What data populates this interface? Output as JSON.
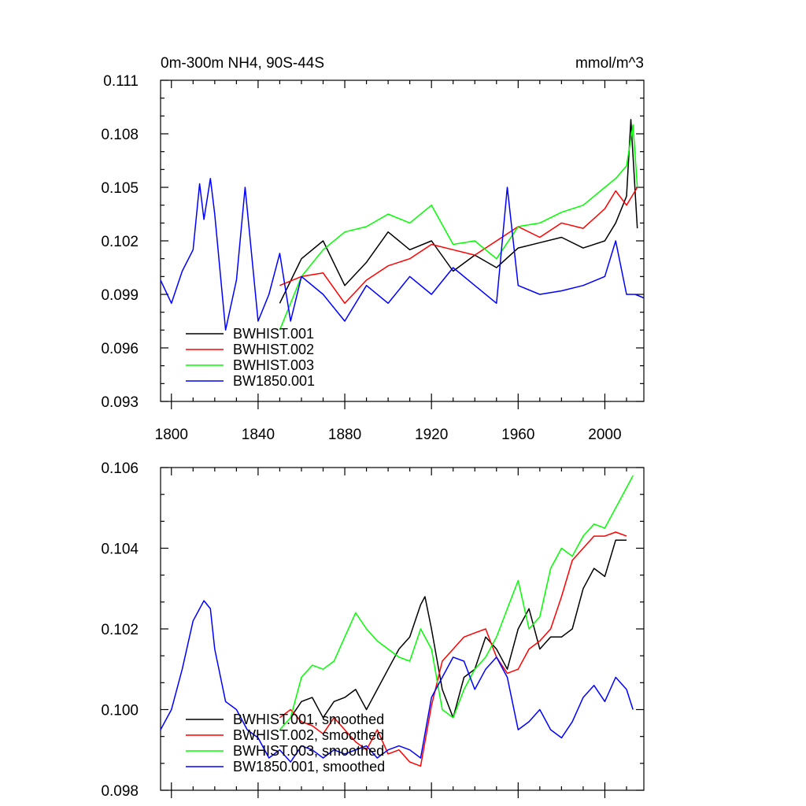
{
  "chart_data": [
    {
      "type": "line",
      "title_left": "0m-300m NH4, 90S-44S",
      "title_right": "mmol/m^3",
      "xlim": [
        1795,
        2018
      ],
      "ylim": [
        0.093,
        0.111
      ],
      "xticks": [
        1800,
        1840,
        1880,
        1920,
        1960,
        2000
      ],
      "yticks": [
        0.093,
        0.096,
        0.099,
        0.102,
        0.105,
        0.108,
        0.111
      ],
      "ytick_labels": [
        "0.093",
        "0.096",
        "0.099",
        "0.102",
        "0.105",
        "0.108",
        "0.111"
      ],
      "legend_placement": "bottom-left",
      "series": [
        {
          "name": "BWHIST.001",
          "color": "#000000",
          "x": [
            1850,
            1860,
            1870,
            1880,
            1890,
            1900,
            1910,
            1920,
            1930,
            1940,
            1950,
            1960,
            1970,
            1980,
            1990,
            2000,
            2005,
            2010,
            2012,
            2015
          ],
          "values": [
            0.0985,
            0.101,
            0.102,
            0.0995,
            0.1008,
            0.1025,
            0.1015,
            0.102,
            0.1003,
            0.1012,
            0.1005,
            0.1016,
            0.1019,
            0.1022,
            0.1016,
            0.102,
            0.103,
            0.1045,
            0.1088,
            0.1027
          ]
        },
        {
          "name": "BWHIST.002",
          "color": "#ff0000",
          "x": [
            1850,
            1860,
            1870,
            1880,
            1890,
            1900,
            1910,
            1920,
            1930,
            1940,
            1950,
            1960,
            1970,
            1980,
            1990,
            2000,
            2005,
            2010,
            2015
          ],
          "values": [
            0.0995,
            0.1,
            0.1002,
            0.0985,
            0.0998,
            0.1006,
            0.101,
            0.1018,
            0.1015,
            0.1012,
            0.102,
            0.1028,
            0.1022,
            0.103,
            0.1027,
            0.1038,
            0.1048,
            0.104,
            0.105
          ]
        },
        {
          "name": "BWHIST.003",
          "color": "#00ff00",
          "x": [
            1850,
            1860,
            1870,
            1880,
            1890,
            1900,
            1910,
            1920,
            1930,
            1940,
            1950,
            1960,
            1970,
            1980,
            1990,
            2000,
            2005,
            2010,
            2013,
            2015
          ],
          "values": [
            0.097,
            0.1,
            0.1015,
            0.1025,
            0.1028,
            0.1035,
            0.103,
            0.104,
            0.1018,
            0.102,
            0.101,
            0.1028,
            0.103,
            0.1036,
            0.104,
            0.105,
            0.1055,
            0.1062,
            0.1085,
            0.105
          ]
        },
        {
          "name": "BW1850.001",
          "color": "#0000ff",
          "x": [
            1795,
            1800,
            1805,
            1810,
            1813,
            1815,
            1818,
            1820,
            1825,
            1830,
            1834,
            1840,
            1845,
            1850,
            1855,
            1860,
            1870,
            1880,
            1890,
            1900,
            1910,
            1920,
            1930,
            1940,
            1950,
            1955,
            1960,
            1970,
            1980,
            1990,
            2000,
            2005,
            2010,
            2014,
            2018
          ],
          "values": [
            0.0998,
            0.0985,
            0.1003,
            0.1015,
            0.1052,
            0.1032,
            0.1055,
            0.1035,
            0.097,
            0.0998,
            0.105,
            0.0975,
            0.099,
            0.1013,
            0.0975,
            0.1,
            0.099,
            0.0975,
            0.0995,
            0.0985,
            0.1,
            0.099,
            0.1005,
            0.0995,
            0.0985,
            0.105,
            0.0995,
            0.099,
            0.0992,
            0.0995,
            0.1,
            0.102,
            0.099,
            0.099,
            0.0988
          ]
        }
      ]
    },
    {
      "type": "line",
      "title_left": "",
      "title_right": "",
      "xlim": [
        1795,
        2018
      ],
      "ylim": [
        0.098,
        0.106
      ],
      "xticks": [
        1800,
        1840,
        1880,
        1920,
        1960,
        2000
      ],
      "yticks": [
        0.098,
        0.1,
        0.102,
        0.104,
        0.106
      ],
      "ytick_labels": [
        "0.098",
        "0.100",
        "0.102",
        "0.104",
        "0.106"
      ],
      "legend_placement": "bottom-left",
      "series": [
        {
          "name": "BWHIST.001, smoothed",
          "color": "#000000",
          "x": [
            1855,
            1860,
            1865,
            1870,
            1875,
            1880,
            1885,
            1890,
            1895,
            1900,
            1905,
            1910,
            1915,
            1917,
            1920,
            1925,
            1930,
            1935,
            1940,
            1945,
            1950,
            1955,
            1960,
            1965,
            1970,
            1975,
            1980,
            1985,
            1990,
            1995,
            2000,
            2005,
            2010
          ],
          "values": [
            0.0998,
            0.1002,
            0.1003,
            0.0998,
            0.1002,
            0.1003,
            0.1005,
            0.1,
            0.1005,
            0.101,
            0.1015,
            0.1018,
            0.1026,
            0.1028,
            0.102,
            0.1005,
            0.0998,
            0.1008,
            0.101,
            0.1018,
            0.1015,
            0.101,
            0.102,
            0.1025,
            0.1015,
            0.1018,
            0.1018,
            0.102,
            0.103,
            0.1035,
            0.1033,
            0.1042,
            0.1042
          ]
        },
        {
          "name": "BWHIST.002, smoothed",
          "color": "#ff0000",
          "x": [
            1850,
            1855,
            1860,
            1865,
            1870,
            1875,
            1880,
            1885,
            1890,
            1895,
            1900,
            1905,
            1910,
            1915,
            1920,
            1925,
            1930,
            1935,
            1940,
            1945,
            1950,
            1955,
            1960,
            1965,
            1970,
            1975,
            1980,
            1985,
            1990,
            1995,
            2000,
            2005,
            2010
          ],
          "values": [
            0.0998,
            0.1,
            0.0997,
            0.0996,
            0.0994,
            0.0998,
            0.0995,
            0.0992,
            0.099,
            0.0995,
            0.0989,
            0.099,
            0.0987,
            0.0986,
            0.1001,
            0.1012,
            0.1015,
            0.1018,
            0.1019,
            0.102,
            0.1013,
            0.1009,
            0.101,
            0.1015,
            0.1017,
            0.102,
            0.1028,
            0.1037,
            0.104,
            0.1043,
            0.1043,
            0.1044,
            0.1043
          ]
        },
        {
          "name": "BWHIST.003, smoothed",
          "color": "#00ff00",
          "x": [
            1850,
            1855,
            1860,
            1865,
            1870,
            1875,
            1880,
            1885,
            1890,
            1895,
            1900,
            1905,
            1910,
            1915,
            1920,
            1925,
            1930,
            1935,
            1940,
            1945,
            1950,
            1955,
            1960,
            1965,
            1970,
            1975,
            1980,
            1985,
            1990,
            1995,
            2000,
            2005,
            2010,
            2013
          ],
          "values": [
            0.0995,
            0.0998,
            0.1008,
            0.1011,
            0.101,
            0.1012,
            0.1018,
            0.1024,
            0.102,
            0.1017,
            0.1015,
            0.1013,
            0.1012,
            0.102,
            0.1015,
            0.1,
            0.0998,
            0.1005,
            0.101,
            0.1013,
            0.1018,
            0.1025,
            0.1032,
            0.102,
            0.1023,
            0.1035,
            0.104,
            0.1038,
            0.1043,
            0.1046,
            0.1045,
            0.105,
            0.1055,
            0.1058
          ]
        },
        {
          "name": "BW1850.001, smoothed",
          "color": "#0000ff",
          "x": [
            1795,
            1800,
            1805,
            1810,
            1815,
            1818,
            1820,
            1825,
            1830,
            1835,
            1840,
            1845,
            1850,
            1855,
            1860,
            1865,
            1870,
            1875,
            1880,
            1885,
            1890,
            1895,
            1900,
            1905,
            1910,
            1915,
            1920,
            1925,
            1930,
            1935,
            1940,
            1945,
            1950,
            1955,
            1960,
            1965,
            1970,
            1975,
            1980,
            1985,
            1990,
            1995,
            2000,
            2005,
            2010,
            2013
          ],
          "values": [
            0.0995,
            0.1,
            0.101,
            0.1022,
            0.1027,
            0.1025,
            0.1015,
            0.1002,
            0.1,
            0.0995,
            0.0993,
            0.0988,
            0.099,
            0.0987,
            0.0991,
            0.099,
            0.0988,
            0.099,
            0.0989,
            0.099,
            0.0991,
            0.0988,
            0.099,
            0.0991,
            0.099,
            0.0988,
            0.1003,
            0.1008,
            0.1013,
            0.1012,
            0.1005,
            0.101,
            0.1013,
            0.1008,
            0.0995,
            0.0997,
            0.1,
            0.0995,
            0.0993,
            0.0997,
            0.1003,
            0.1006,
            0.1002,
            0.1008,
            0.1005,
            0.1
          ]
        }
      ]
    }
  ]
}
